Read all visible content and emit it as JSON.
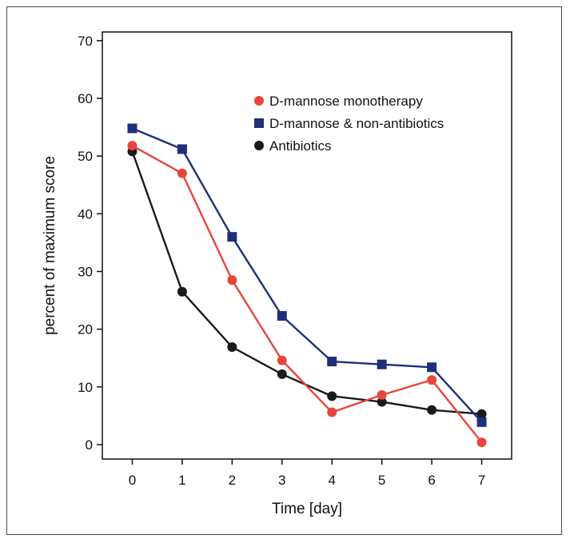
{
  "chart_data": {
    "type": "line",
    "title": "",
    "xlabel": "Time [day]",
    "ylabel": "percent of maximum score",
    "x": [
      0,
      1,
      2,
      3,
      4,
      5,
      6,
      7
    ],
    "xticks": [
      "0",
      "1",
      "2",
      "3",
      "4",
      "5",
      "6",
      "7"
    ],
    "yticks": [
      "0",
      "10",
      "20",
      "30",
      "40",
      "50",
      "60",
      "70"
    ],
    "xlim": [
      -0.6,
      7.6
    ],
    "ylim": [
      -2.5,
      71.5
    ],
    "grid": false,
    "legend_position": "top-right",
    "series": [
      {
        "name": "D-mannose monotherapy",
        "marker": "circle",
        "color": "#e8453c",
        "values": [
          51.8,
          47,
          28.5,
          14.6,
          5.6,
          8.6,
          11.2,
          0.4
        ]
      },
      {
        "name": "D-mannose & non-antibiotics",
        "marker": "square",
        "color": "#1f2f7a",
        "values": [
          54.8,
          51.2,
          36,
          22.3,
          14.4,
          13.9,
          13.4,
          3.9
        ]
      },
      {
        "name": "Antibiotics",
        "marker": "circle",
        "color": "#1a1a1a",
        "values": [
          50.8,
          26.5,
          16.9,
          12.2,
          8.4,
          7.4,
          6,
          5.3
        ]
      }
    ]
  }
}
